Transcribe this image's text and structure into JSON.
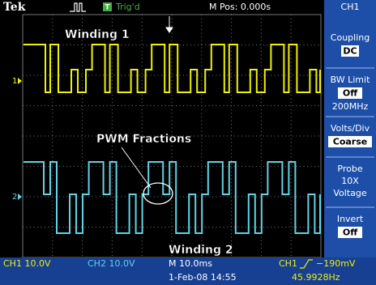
{
  "header": {
    "brand": "Tek",
    "trigger_icon": "T",
    "status": "Trig'd",
    "m_pos": "M Pos: 0.000s",
    "channel": "CH1"
  },
  "annotations": {
    "winding_1": "Winding 1",
    "pwm_fractions": "PWM Fractions",
    "winding_2": "Winding 2"
  },
  "markers": {
    "ch1": "1",
    "ch2": "2"
  },
  "menu": [
    {
      "label": "Coupling",
      "value": "DC"
    },
    {
      "label": "BW Limit",
      "value": "Off",
      "note": "200MHz"
    },
    {
      "label": "Volts/Div",
      "value": "Coarse"
    },
    {
      "label": "Probe",
      "lines": [
        "10X",
        "Voltage"
      ]
    },
    {
      "label": "Invert",
      "value": "Off"
    }
  ],
  "footer": {
    "ch1": "CH1 10.0V",
    "ch2": "CH2 10.0V",
    "timebase": "M 10.0ms",
    "trigger_source": "CH1",
    "trigger_level": "−190mV",
    "date": "1-Feb-08 14:55",
    "frequency": "45.9928Hz"
  }
}
